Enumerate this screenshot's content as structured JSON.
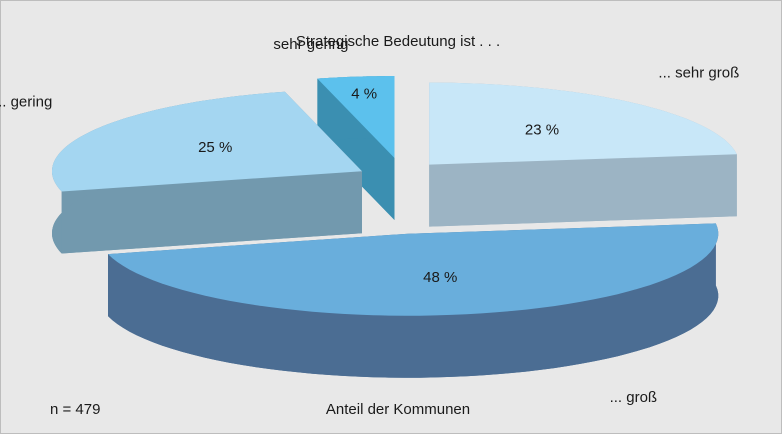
{
  "chart_data": {
    "type": "pie3d",
    "title": "Strategische Bedeutung ist . . .",
    "note": "n = 479",
    "xlabel": "Anteil der Kommunen",
    "categories": [
      "... sehr groß",
      "... groß",
      "... gering",
      "sehr gering"
    ],
    "values": [
      23,
      48,
      25,
      4
    ],
    "value_labels": [
      "23 %",
      "48 %",
      "25 %",
      "4 %"
    ],
    "colors": [
      "#c8e7f8",
      "#69aedc",
      "#a4d6f1",
      "#5cc1ed"
    ],
    "side_colors": [
      "#9cb4c4",
      "#4b6d93",
      "#7299ae",
      "#3b8fb1"
    ]
  }
}
